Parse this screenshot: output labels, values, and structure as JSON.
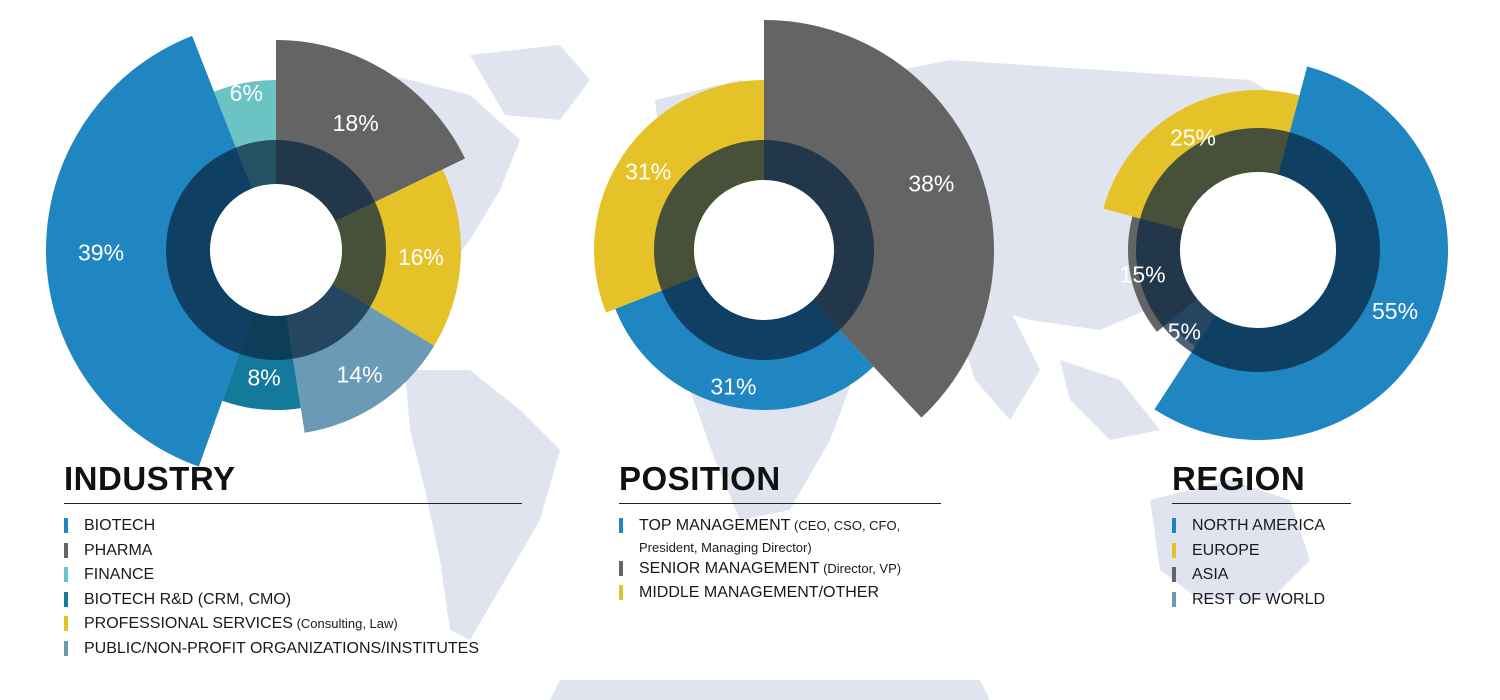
{
  "colors": {
    "blue": "#1f86c1",
    "gray": "#646464",
    "teal": "#6cc3c3",
    "dark_teal": "#137a9b",
    "yellow": "#e6c229",
    "steel": "#6b9ab6",
    "map": "#dfe4ef",
    "inner_overlay": "#0a2640"
  },
  "industry": {
    "title": "INDUSTRY",
    "legend": [
      {
        "label": "BIOTECH",
        "note": "",
        "color": "#1f86c1"
      },
      {
        "label": "PHARMA",
        "note": "",
        "color": "#646464"
      },
      {
        "label": "FINANCE",
        "note": "",
        "color": "#6cc3c3"
      },
      {
        "label": "BIOTECH R&D (CRM, CMO)",
        "note": "",
        "color": "#137a9b"
      },
      {
        "label": "PROFESSIONAL SERVICES",
        "note": " (Consulting, Law)",
        "color": "#e6c229"
      },
      {
        "label": "PUBLIC/NON-PROFIT ORGANIZATIONS/INSTITUTES",
        "note": "",
        "color": "#6b9ab6"
      }
    ]
  },
  "position": {
    "title": "POSITION",
    "legend": [
      {
        "label": "TOP MANAGEMENT",
        "note": " (CEO, CSO, CFO,",
        "note2": "President, Managing Director)",
        "color": "#1f86c1"
      },
      {
        "label": "SENIOR MANAGEMENT",
        "note": " (Director, VP)",
        "color": "#646464"
      },
      {
        "label": "MIDDLE MANAGEMENT/OTHER",
        "note": "",
        "color": "#e6c229"
      }
    ]
  },
  "region": {
    "title": "REGION",
    "legend": [
      {
        "label": "NORTH AMERICA",
        "color": "#1f86c1"
      },
      {
        "label": "EUROPE",
        "color": "#e6c229"
      },
      {
        "label": "ASIA",
        "color": "#646464"
      },
      {
        "label": "REST OF WORLD",
        "color": "#6b9ab6"
      }
    ]
  },
  "chart_data": [
    {
      "type": "pie",
      "chart": "industry",
      "title": "INDUSTRY",
      "slices": [
        {
          "label": "PHARMA",
          "value": 18,
          "text": "18%",
          "color": "#646464"
        },
        {
          "label": "PROFESSIONAL SERVICES",
          "value": 16,
          "text": "16%",
          "color": "#e6c229"
        },
        {
          "label": "PUBLIC/NON-PROFIT ORGANIZATIONS/INSTITUTES",
          "value": 14,
          "text": "14%",
          "color": "#6b9ab6"
        },
        {
          "label": "BIOTECH R&D (CRM, CMO)",
          "value": 8,
          "text": "8%",
          "color": "#137a9b"
        },
        {
          "label": "BIOTECH",
          "value": 39,
          "text": "39%",
          "color": "#1f86c1"
        },
        {
          "label": "FINANCE",
          "value": 6,
          "text": "6%",
          "color": "#6cc3c3"
        }
      ]
    },
    {
      "type": "pie",
      "chart": "position",
      "title": "POSITION",
      "slices": [
        {
          "label": "SENIOR MANAGEMENT",
          "value": 38,
          "text": "38%",
          "color": "#646464"
        },
        {
          "label": "TOP MANAGEMENT",
          "value": 31,
          "text": "31%",
          "color": "#1f86c1"
        },
        {
          "label": "MIDDLE MANAGEMENT/OTHER",
          "value": 31,
          "text": "31%",
          "color": "#e6c229"
        }
      ]
    },
    {
      "type": "pie",
      "chart": "region",
      "title": "REGION",
      "slices": [
        {
          "label": "NORTH AMERICA",
          "value": 55,
          "text": "55%",
          "color": "#1f86c1"
        },
        {
          "label": "REST OF WORLD",
          "value": 5,
          "text": "5%",
          "color": "#6b9ab6"
        },
        {
          "label": "ASIA",
          "value": 15,
          "text": "15%",
          "color": "#646464"
        },
        {
          "label": "EUROPE",
          "value": 25,
          "text": "25%",
          "color": "#e6c229"
        }
      ]
    }
  ]
}
